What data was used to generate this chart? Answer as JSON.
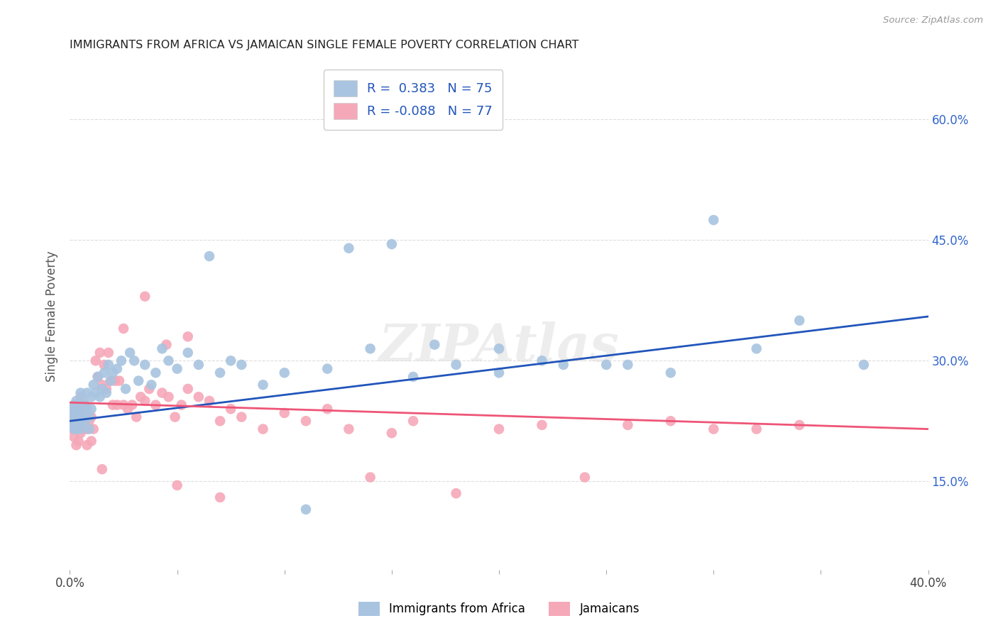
{
  "title": "IMMIGRANTS FROM AFRICA VS JAMAICAN SINGLE FEMALE POVERTY CORRELATION CHART",
  "source": "Source: ZipAtlas.com",
  "ylabel": "Single Female Poverty",
  "yticks_labels": [
    "15.0%",
    "30.0%",
    "45.0%",
    "60.0%"
  ],
  "ytick_vals": [
    0.15,
    0.3,
    0.45,
    0.6
  ],
  "xlim": [
    0.0,
    0.4
  ],
  "ylim": [
    0.04,
    0.67
  ],
  "blue_R": 0.383,
  "blue_N": 75,
  "pink_R": -0.088,
  "pink_N": 77,
  "blue_color": "#A8C4E0",
  "pink_color": "#F5A8B8",
  "blue_line_color": "#2255BB",
  "pink_line_color": "#EE5577",
  "legend_label_blue": "Immigrants from Africa",
  "legend_label_pink": "Jamaicans",
  "blue_scatter_x": [
    0.0005,
    0.001,
    0.001,
    0.0015,
    0.002,
    0.002,
    0.0025,
    0.003,
    0.003,
    0.003,
    0.004,
    0.004,
    0.004,
    0.005,
    0.005,
    0.005,
    0.006,
    0.006,
    0.007,
    0.007,
    0.008,
    0.008,
    0.009,
    0.009,
    0.01,
    0.01,
    0.011,
    0.012,
    0.013,
    0.014,
    0.015,
    0.016,
    0.017,
    0.018,
    0.019,
    0.02,
    0.022,
    0.024,
    0.026,
    0.028,
    0.03,
    0.032,
    0.035,
    0.038,
    0.04,
    0.043,
    0.046,
    0.05,
    0.055,
    0.06,
    0.065,
    0.07,
    0.075,
    0.08,
    0.09,
    0.1,
    0.11,
    0.12,
    0.14,
    0.16,
    0.18,
    0.2,
    0.23,
    0.26,
    0.3,
    0.34,
    0.37,
    0.2,
    0.25,
    0.15,
    0.13,
    0.17,
    0.22,
    0.28,
    0.32
  ],
  "blue_scatter_y": [
    0.235,
    0.24,
    0.22,
    0.23,
    0.245,
    0.215,
    0.225,
    0.23,
    0.215,
    0.25,
    0.225,
    0.24,
    0.22,
    0.235,
    0.215,
    0.26,
    0.23,
    0.25,
    0.245,
    0.225,
    0.26,
    0.24,
    0.23,
    0.215,
    0.255,
    0.24,
    0.27,
    0.26,
    0.28,
    0.255,
    0.265,
    0.285,
    0.26,
    0.295,
    0.275,
    0.285,
    0.29,
    0.3,
    0.265,
    0.31,
    0.3,
    0.275,
    0.295,
    0.27,
    0.285,
    0.315,
    0.3,
    0.29,
    0.31,
    0.295,
    0.43,
    0.285,
    0.3,
    0.295,
    0.27,
    0.285,
    0.115,
    0.29,
    0.315,
    0.28,
    0.295,
    0.285,
    0.295,
    0.295,
    0.475,
    0.35,
    0.295,
    0.315,
    0.295,
    0.445,
    0.44,
    0.32,
    0.3,
    0.285,
    0.315
  ],
  "pink_scatter_x": [
    0.0005,
    0.001,
    0.001,
    0.0015,
    0.002,
    0.002,
    0.003,
    0.003,
    0.003,
    0.004,
    0.004,
    0.005,
    0.005,
    0.006,
    0.006,
    0.007,
    0.007,
    0.008,
    0.008,
    0.009,
    0.01,
    0.01,
    0.011,
    0.012,
    0.013,
    0.014,
    0.015,
    0.016,
    0.017,
    0.018,
    0.019,
    0.02,
    0.021,
    0.022,
    0.023,
    0.025,
    0.027,
    0.029,
    0.031,
    0.033,
    0.035,
    0.037,
    0.04,
    0.043,
    0.046,
    0.049,
    0.052,
    0.055,
    0.06,
    0.065,
    0.07,
    0.075,
    0.08,
    0.09,
    0.1,
    0.11,
    0.12,
    0.13,
    0.14,
    0.15,
    0.16,
    0.18,
    0.2,
    0.22,
    0.24,
    0.26,
    0.28,
    0.3,
    0.32,
    0.34,
    0.015,
    0.025,
    0.035,
    0.045,
    0.055,
    0.05,
    0.07
  ],
  "pink_scatter_y": [
    0.23,
    0.24,
    0.215,
    0.225,
    0.235,
    0.205,
    0.195,
    0.22,
    0.245,
    0.2,
    0.235,
    0.21,
    0.255,
    0.215,
    0.24,
    0.22,
    0.245,
    0.195,
    0.215,
    0.225,
    0.2,
    0.23,
    0.215,
    0.3,
    0.28,
    0.31,
    0.27,
    0.295,
    0.265,
    0.31,
    0.275,
    0.245,
    0.275,
    0.245,
    0.275,
    0.245,
    0.24,
    0.245,
    0.23,
    0.255,
    0.25,
    0.265,
    0.245,
    0.26,
    0.255,
    0.23,
    0.245,
    0.265,
    0.255,
    0.25,
    0.225,
    0.24,
    0.23,
    0.215,
    0.235,
    0.225,
    0.24,
    0.215,
    0.155,
    0.21,
    0.225,
    0.135,
    0.215,
    0.22,
    0.155,
    0.22,
    0.225,
    0.215,
    0.215,
    0.22,
    0.165,
    0.34,
    0.38,
    0.32,
    0.33,
    0.145,
    0.13
  ],
  "grid_color": "#DDDDDD",
  "background_color": "#FFFFFF",
  "xtick_positions": [
    0.0,
    0.05,
    0.1,
    0.15,
    0.2,
    0.25,
    0.3,
    0.35,
    0.4
  ],
  "xtick_show_labels": [
    true,
    false,
    false,
    false,
    false,
    false,
    false,
    false,
    true
  ]
}
